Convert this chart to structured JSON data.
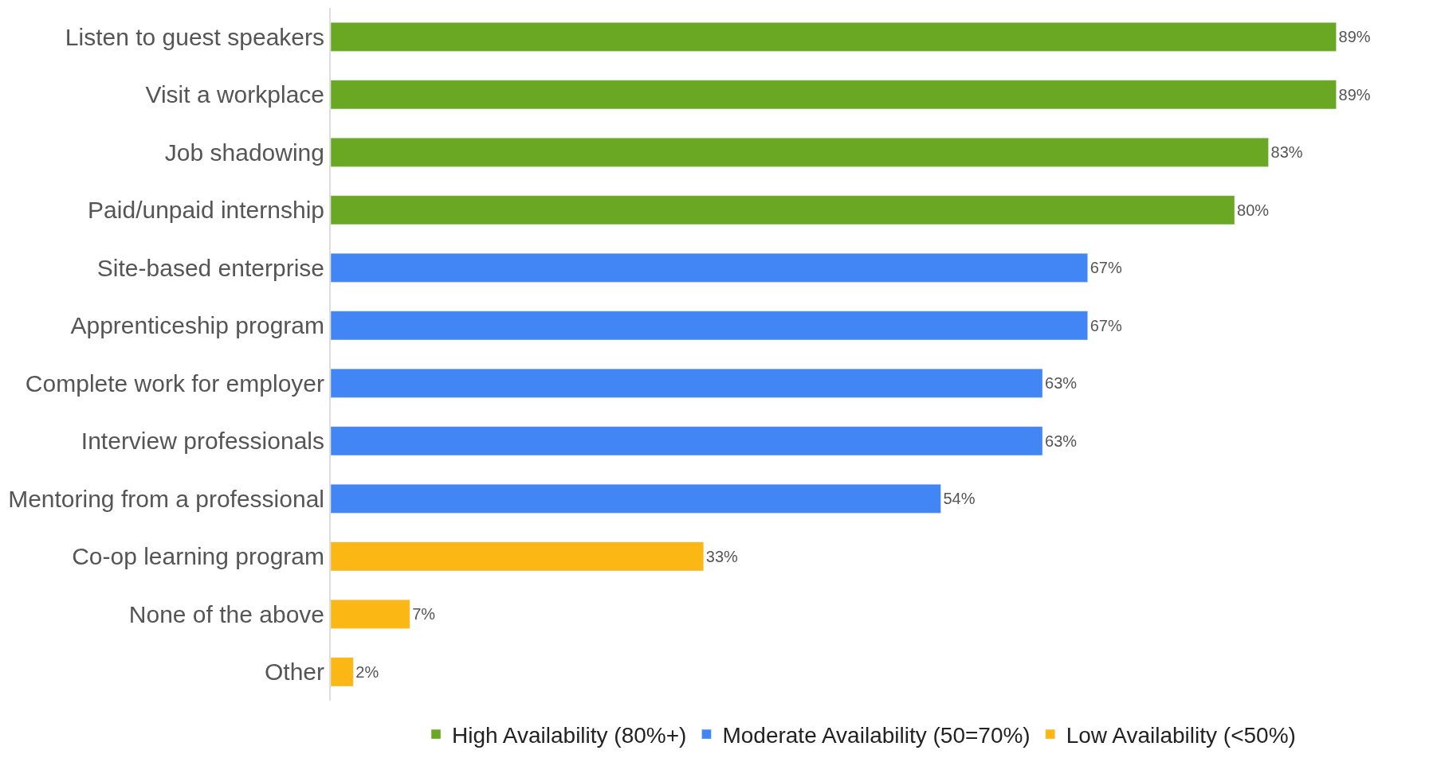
{
  "chart_data": {
    "type": "bar",
    "orientation": "horizontal",
    "categories": [
      "Listen to guest speakers",
      "Visit a workplace",
      "Job shadowing",
      "Paid/unpaid internship",
      "Site-based enterprise",
      "Apprenticeship program",
      "Complete work for employer",
      "Interview professionals",
      "Mentoring from a professional",
      "Co-op learning program",
      "None of the above",
      "Other"
    ],
    "series": [
      {
        "name": "High Availability (80%+)",
        "color": "#6aa823",
        "values": [
          89,
          89,
          83,
          80,
          null,
          null,
          null,
          null,
          null,
          null,
          null,
          null
        ],
        "value_labels": [
          "89%",
          "89%",
          "83%",
          "80%",
          null,
          null,
          null,
          null,
          null,
          null,
          null,
          null
        ]
      },
      {
        "name": "Moderate Availability (50=70%)",
        "color": "#4285f4",
        "values": [
          null,
          null,
          null,
          null,
          67,
          67,
          63,
          63,
          54,
          null,
          null,
          null
        ],
        "value_labels": [
          null,
          null,
          null,
          null,
          "67%",
          "67%",
          "63%",
          "63%",
          "54%",
          null,
          null,
          null
        ]
      },
      {
        "name": "Low Availability (<50%)",
        "color": "#fbb714",
        "values": [
          null,
          null,
          null,
          null,
          null,
          null,
          null,
          null,
          null,
          33,
          7,
          2
        ],
        "value_labels": [
          null,
          null,
          null,
          null,
          null,
          null,
          null,
          null,
          null,
          "33%",
          "7%",
          "2%"
        ]
      }
    ],
    "tick_labels": "y",
    "legend": "bottom"
  }
}
